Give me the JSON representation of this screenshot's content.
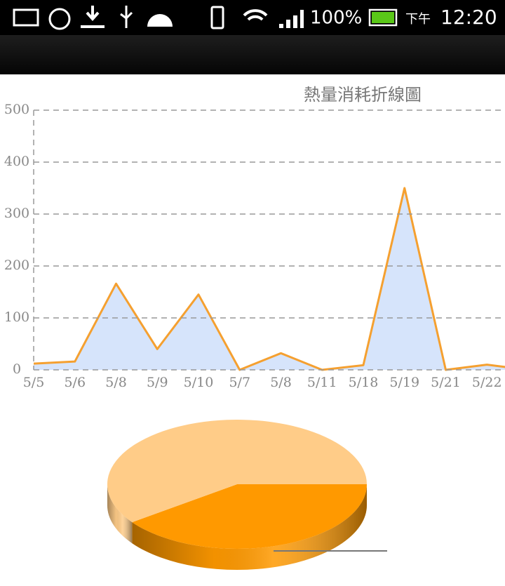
{
  "status_bar": {
    "battery": "100%",
    "ampm": "下午",
    "time": "12:20"
  },
  "chart_data": [
    {
      "type": "line",
      "title": "熱量消耗折線圖",
      "categories": [
        "5/5",
        "5/6",
        "5/8",
        "5/9",
        "5/10",
        "5/7",
        "5/8",
        "5/11",
        "5/18",
        "5/19",
        "5/21",
        "5/22",
        null
      ],
      "series": [
        {
          "color": "#f5a030",
          "fill": "#d6e4fb",
          "values": [
            12,
            16,
            166,
            40,
            145,
            0,
            32,
            0,
            9,
            350,
            0,
            10,
            0
          ]
        }
      ],
      "ylim": [
        0,
        500
      ],
      "yticks": [
        0,
        100,
        200,
        300,
        400,
        500
      ],
      "grid": true
    },
    {
      "type": "pie",
      "values": [
        40,
        60
      ],
      "colors": [
        "#ff9900",
        "#ffcc88"
      ]
    }
  ]
}
